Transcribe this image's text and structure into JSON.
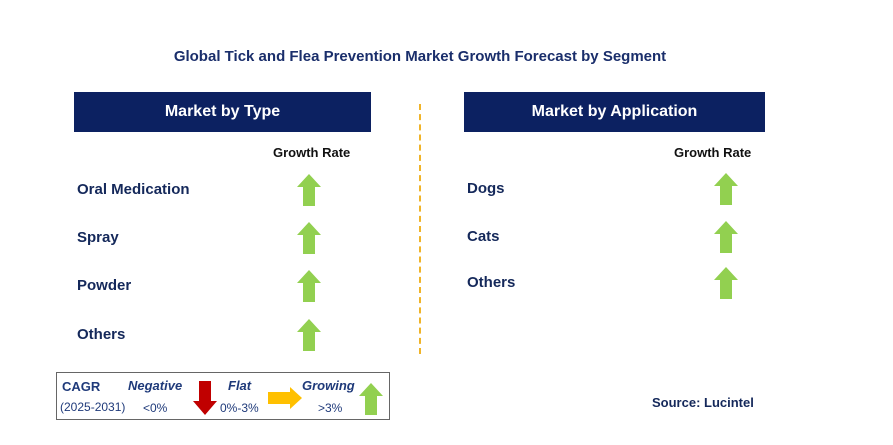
{
  "title": "Global Tick and Flea Prevention Market Growth Forecast by Segment",
  "type_panel": {
    "header": "Market by Type",
    "column": "Growth Rate",
    "rows": [
      {
        "label": "Oral Medication",
        "trend": "growing"
      },
      {
        "label": "Spray",
        "trend": "growing"
      },
      {
        "label": "Powder",
        "trend": "growing"
      },
      {
        "label": "Others",
        "trend": "growing"
      }
    ]
  },
  "app_panel": {
    "header": "Market by Application",
    "column": "Growth Rate",
    "rows": [
      {
        "label": "Dogs",
        "trend": "growing"
      },
      {
        "label": "Cats",
        "trend": "growing"
      },
      {
        "label": "Others",
        "trend": "growing"
      }
    ]
  },
  "legend": {
    "cagr": "CAGR",
    "period": "(2025-2031)",
    "negative": "Negative",
    "negative_range": "<0%",
    "flat": "Flat",
    "flat_range": "0%-3%",
    "growing": "Growing",
    "growing_range": ">3%"
  },
  "source": "Source: Lucintel",
  "colors": {
    "navy": "#0c2161",
    "green": "#92d050",
    "red": "#c00000",
    "yellow": "#ffc000"
  }
}
